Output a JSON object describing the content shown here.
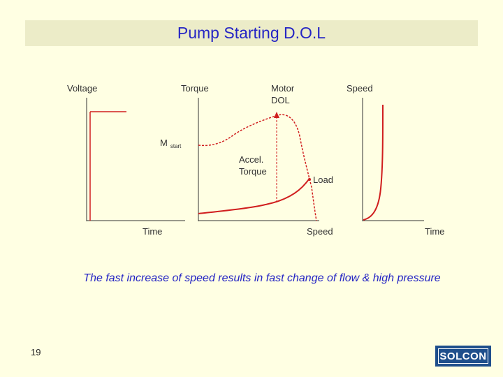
{
  "slide": {
    "title": "Pump Starting D.O.L",
    "caption": "The fast increase of speed results in fast change of flow & high pressure",
    "page_number": "19",
    "logo_text": "SOLCON"
  },
  "diagram": {
    "voltage_label": "Voltage",
    "torque_label": "Torque",
    "motor_label_line1": "Motor",
    "motor_label_line2": "DOL",
    "speed_label": "Speed",
    "mstart_label": "M",
    "mstart_sub": "start",
    "accel_line1": "Accel.",
    "accel_line2": "Torque",
    "load_label": "Load",
    "x_time_label_1": "Time",
    "x_speed_label": "Speed",
    "x_time_label_2": "Time"
  },
  "colors": {
    "curve": "#d01e1e",
    "axis": "#333333",
    "title": "#2525c4",
    "logo_bg": "#1f4f8c"
  }
}
